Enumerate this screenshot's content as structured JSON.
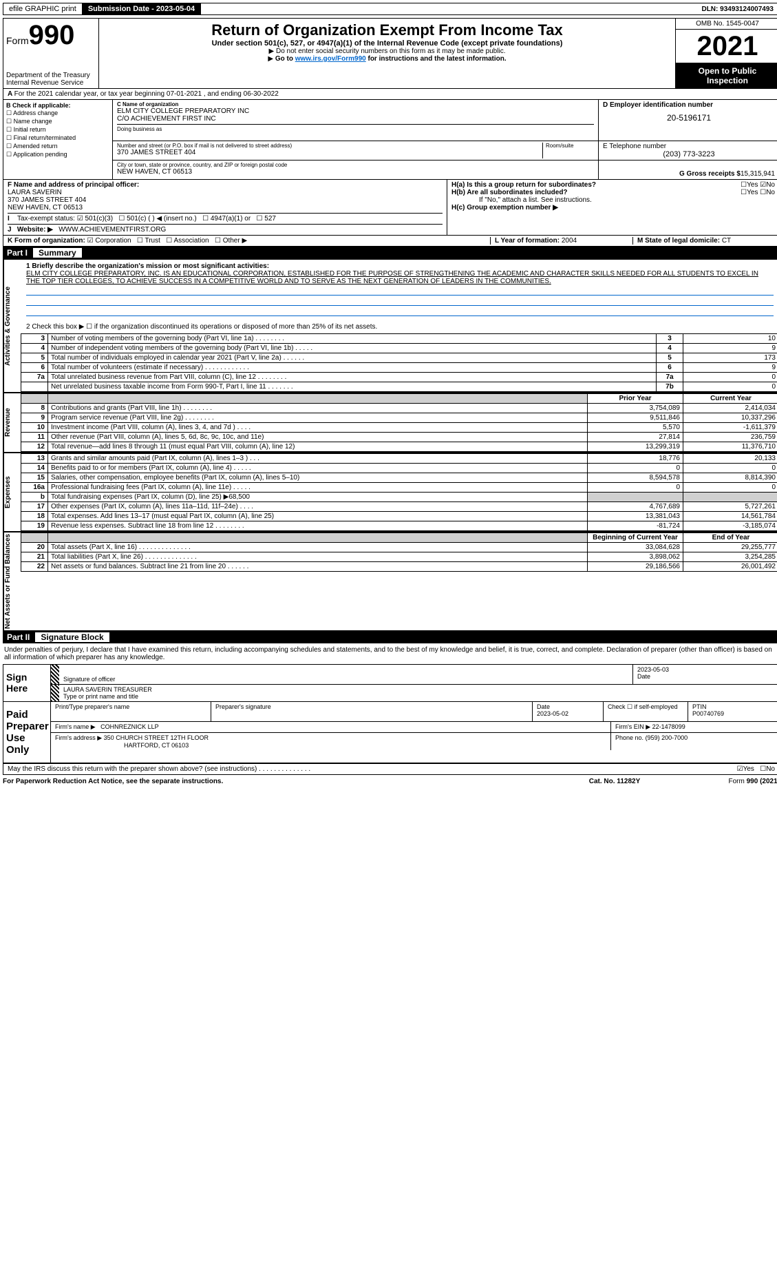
{
  "topbar": {
    "efile": "efile GRAPHIC print",
    "submission": "Submission Date - 2023-05-04",
    "dln": "DLN: 93493124007493"
  },
  "header": {
    "form_label": "Form",
    "form_no": "990",
    "dept": "Department of the Treasury\nInternal Revenue Service",
    "title": "Return of Organization Exempt From Income Tax",
    "sub1": "Under section 501(c), 527, or 4947(a)(1) of the Internal Revenue Code (except private foundations)",
    "sub2": "Do not enter social security numbers on this form as it may be made public.",
    "sub3": "Go to ",
    "sub3_link": "www.irs.gov/Form990",
    "sub3_tail": " for instructions and the latest information.",
    "omb": "OMB No. 1545-0047",
    "year": "2021",
    "otp": "Open to Public Inspection"
  },
  "A": "For the 2021 calendar year, or tax year beginning 07-01-2021   , and ending 06-30-2022",
  "B": {
    "label": "B Check if applicable:",
    "items": [
      "Address change",
      "Name change",
      "Initial return",
      "Final return/terminated",
      "Amended return",
      "Application pending"
    ]
  },
  "C": {
    "name_lbl": "C Name of organization",
    "name": "ELM CITY COLLEGE PREPARATORY INC",
    "care": "C/O ACHIEVEMENT FIRST INC",
    "dba_lbl": "Doing business as",
    "street_lbl": "Number and street (or P.O. box if mail is not delivered to street address)",
    "room_lbl": "Room/suite",
    "street": "370 JAMES STREET 404",
    "city_lbl": "City or town, state or province, country, and ZIP or foreign postal code",
    "city": "NEW HAVEN, CT  06513"
  },
  "D": {
    "lbl": "D Employer identification number",
    "val": "20-5196171"
  },
  "E": {
    "lbl": "E Telephone number",
    "val": "(203) 773-3223"
  },
  "G": {
    "lbl": "G Gross receipts $",
    "val": "15,315,941"
  },
  "F": {
    "lbl": "F  Name and address of principal officer:",
    "name": "LAURA SAVERIN",
    "addr1": "370 JAMES STREET 404",
    "addr2": "NEW HAVEN, CT  06513"
  },
  "H": {
    "a": "H(a)  Is this a group return for subordinates?",
    "b": "H(b)  Are all subordinates included?",
    "b_note": "If \"No,\" attach a list. See instructions.",
    "c": "H(c)  Group exemption number ▶",
    "yes": "Yes",
    "no": "No"
  },
  "I": {
    "lbl": "Tax-exempt status:",
    "opts": [
      "501(c)(3)",
      "501(c) (  ) ◀ (insert no.)",
      "4947(a)(1) or",
      "527"
    ]
  },
  "J": {
    "lbl": "Website: ▶",
    "val": "WWW.ACHIEVEMENTFIRST.ORG"
  },
  "K": {
    "lbl": "K Form of organization:",
    "opts": [
      "Corporation",
      "Trust",
      "Association",
      "Other ▶"
    ]
  },
  "L": {
    "lbl": "L Year of formation:",
    "val": "2004"
  },
  "M": {
    "lbl": "M State of legal domicile:",
    "val": "CT"
  },
  "part1": {
    "title": "Part I",
    "name": "Summary",
    "side1": "Activities & Governance",
    "side2": "Revenue",
    "side3": "Expenses",
    "side4": "Net Assets or Fund Balances",
    "mission_lbl": "1  Briefly describe the organization's mission or most significant activities:",
    "mission": "ELM CITY COLLEGE PREPARATORY, INC. IS AN EDUCATIONAL CORPORATION, ESTABLISHED FOR THE PURPOSE OF STRENGTHENING THE ACADEMIC AND CHARACTER SKILLS NEEDED FOR ALL STUDENTS TO EXCEL IN THE TOP TIER COLLEGES, TO ACHIEVE SUCCESS IN A COMPETITIVE WORLD AND TO SERVE AS THE NEXT GENERATION OF LEADERS IN THE COMMUNITIES.",
    "line2": "2   Check this box ▶ ☐  if the organization discontinued its operations or disposed of more than 25% of its net assets.",
    "gov_rows": [
      {
        "n": "3",
        "lbl": "Number of voting members of the governing body (Part VI, line 1a)   .    .    .    .    .    .    .    .",
        "box": "3",
        "val": "10"
      },
      {
        "n": "4",
        "lbl": "Number of independent voting members of the governing body (Part VI, line 1b)  .    .    .    .    .",
        "box": "4",
        "val": "9"
      },
      {
        "n": "5",
        "lbl": "Total number of individuals employed in calendar year 2021 (Part V, line 2a)  .    .    .    .    .    .",
        "box": "5",
        "val": "173"
      },
      {
        "n": "6",
        "lbl": "Total number of volunteers (estimate if necessary)   .    .    .    .    .    .    .    .    .    .    .    .",
        "box": "6",
        "val": "9"
      },
      {
        "n": "7a",
        "lbl": "Total unrelated business revenue from Part VIII, column (C), line 12  .    .    .    .    .    .    .    .",
        "box": "7a",
        "val": "0"
      },
      {
        "n": "",
        "lbl": "Net unrelated business taxable income from Form 990-T, Part I, line 11  .    .    .    .    .    .    .",
        "box": "7b",
        "val": "0"
      }
    ],
    "col_prior": "Prior Year",
    "col_curr": "Current Year",
    "rev_rows": [
      {
        "n": "8",
        "lbl": "Contributions and grants (Part VIII, line 1h)   .    .    .    .    .    .    .    .",
        "p": "3,754,089",
        "c": "2,414,034"
      },
      {
        "n": "9",
        "lbl": "Program service revenue (Part VIII, line 2g)   .    .    .    .    .    .    .    .",
        "p": "9,511,846",
        "c": "10,337,296"
      },
      {
        "n": "10",
        "lbl": "Investment income (Part VIII, column (A), lines 3, 4, and 7d )   .    .    .    .",
        "p": "5,570",
        "c": "-1,611,379"
      },
      {
        "n": "11",
        "lbl": "Other revenue (Part VIII, column (A), lines 5, 6d, 8c, 9c, 10c, and 11e)",
        "p": "27,814",
        "c": "236,759"
      },
      {
        "n": "12",
        "lbl": "Total revenue—add lines 8 through 11 (must equal Part VIII, column (A), line 12)",
        "p": "13,299,319",
        "c": "11,376,710"
      }
    ],
    "exp_rows": [
      {
        "n": "13",
        "lbl": "Grants and similar amounts paid (Part IX, column (A), lines 1–3 )  .    .    .",
        "p": "18,776",
        "c": "20,133"
      },
      {
        "n": "14",
        "lbl": "Benefits paid to or for members (Part IX, column (A), line 4)  .    .    .    .    .",
        "p": "0",
        "c": "0"
      },
      {
        "n": "15",
        "lbl": "Salaries, other compensation, employee benefits (Part IX, column (A), lines 5–10)",
        "p": "8,594,578",
        "c": "8,814,390"
      },
      {
        "n": "16a",
        "lbl": "Professional fundraising fees (Part IX, column (A), line 11e)  .    .    .    .    .",
        "p": "0",
        "c": "0"
      },
      {
        "n": "b",
        "lbl": "Total fundraising expenses (Part IX, column (D), line 25) ▶68,500",
        "p": "",
        "c": "",
        "shade": true
      },
      {
        "n": "17",
        "lbl": "Other expenses (Part IX, column (A), lines 11a–11d, 11f–24e)  .    .    .    .",
        "p": "4,767,689",
        "c": "5,727,261"
      },
      {
        "n": "18",
        "lbl": "Total expenses. Add lines 13–17 (must equal Part IX, column (A), line 25)",
        "p": "13,381,043",
        "c": "14,561,784"
      },
      {
        "n": "19",
        "lbl": "Revenue less expenses. Subtract line 18 from line 12  .    .    .    .    .    .    .    .",
        "p": "-81,724",
        "c": "-3,185,074"
      }
    ],
    "col_begin": "Beginning of Current Year",
    "col_end": "End of Year",
    "net_rows": [
      {
        "n": "20",
        "lbl": "Total assets (Part X, line 16)  .    .    .    .    .    .    .    .    .    .    .    .    .    .",
        "p": "33,084,628",
        "c": "29,255,777"
      },
      {
        "n": "21",
        "lbl": "Total liabilities (Part X, line 26)  .    .    .    .    .    .    .    .    .    .    .    .    .    .",
        "p": "3,898,062",
        "c": "3,254,285"
      },
      {
        "n": "22",
        "lbl": "Net assets or fund balances. Subtract line 21 from line 20  .    .    .    .    .    .",
        "p": "29,186,566",
        "c": "26,001,492"
      }
    ]
  },
  "part2": {
    "title": "Part II",
    "name": "Signature Block",
    "decl": "Under penalties of perjury, I declare that I have examined this return, including accompanying schedules and statements, and to the best of my knowledge and belief, it is true, correct, and complete. Declaration of preparer (other than officer) is based on all information of which preparer has any knowledge.",
    "sign_here": "Sign Here",
    "sig_officer": "Signature of officer",
    "sig_date": "2023-05-03",
    "date_lbl": "Date",
    "officer_name": "LAURA SAVERIN  TREASURER",
    "type_lbl": "Type or print name and title",
    "paid": "Paid Preparer Use Only",
    "p_name_lbl": "Print/Type preparer's name",
    "p_sig_lbl": "Preparer's signature",
    "p_date_lbl": "Date",
    "p_date": "2023-05-02",
    "p_check": "Check ☐ if self-employed",
    "ptin_lbl": "PTIN",
    "ptin": "P00740769",
    "firm_name_lbl": "Firm's name   ▶",
    "firm_name": "COHNREZNICK LLP",
    "firm_ein_lbl": "Firm's EIN ▶",
    "firm_ein": "22-1478099",
    "firm_addr_lbl": "Firm's address ▶",
    "firm_addr1": "350 CHURCH STREET 12TH FLOOR",
    "firm_addr2": "HARTFORD, CT  06103",
    "phone_lbl": "Phone no.",
    "phone": "(959) 200-7000",
    "may": "May the IRS discuss this return with the preparer shown above? (see instructions)   .    .    .    .    .    .    .    .    .    .    .    .    .    ."
  },
  "footer": {
    "left": "For Paperwork Reduction Act Notice, see the separate instructions.",
    "mid": "Cat. No. 11282Y",
    "right": "Form 990 (2021)"
  }
}
